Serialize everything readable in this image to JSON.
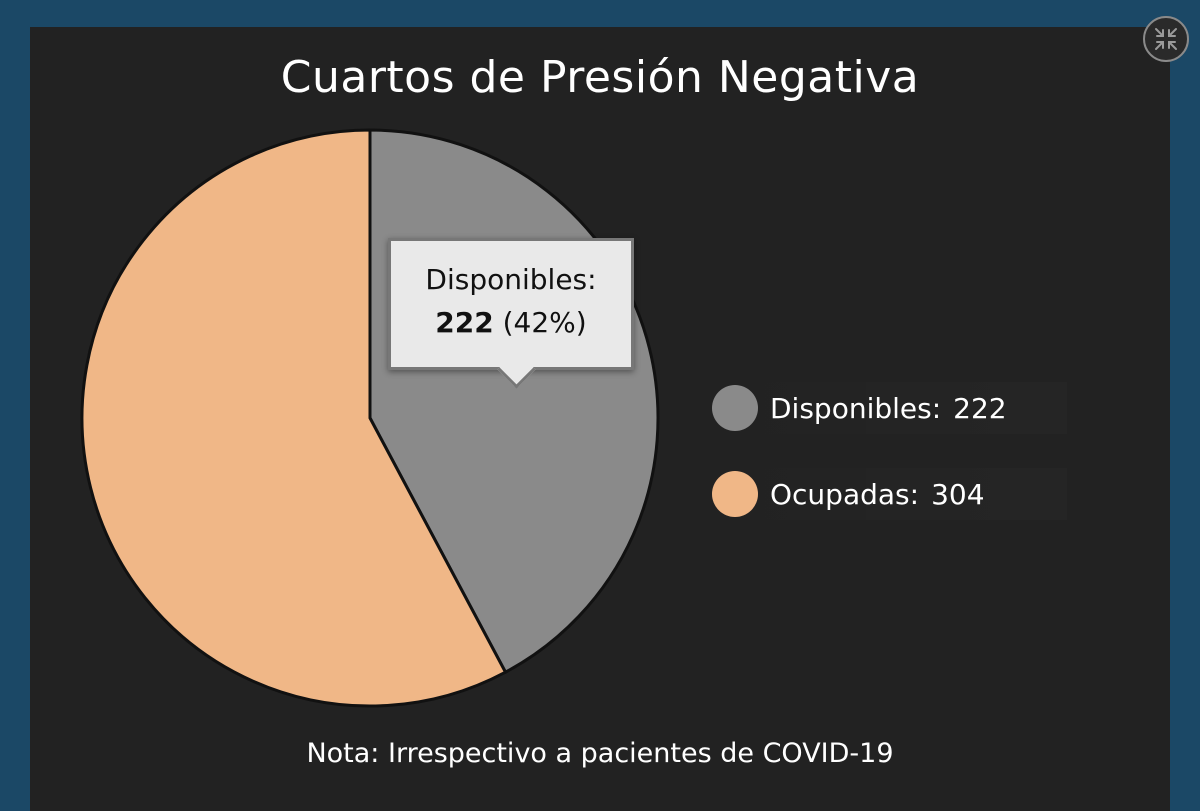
{
  "chart_data": {
    "type": "pie",
    "title": "Cuartos de Presión Negativa",
    "slices": [
      {
        "name": "Disponibles",
        "value": 222,
        "color": "#8a8a8a"
      },
      {
        "name": "Ocupadas",
        "value": 304,
        "color": "#f0b787"
      }
    ],
    "legend": {
      "placement": "right",
      "items": [
        {
          "label": "Disponibles:",
          "value": "222",
          "color": "#8a8a8a"
        },
        {
          "label": "Ocupadas:",
          "value": "304",
          "color": "#f0b787"
        }
      ]
    },
    "tooltip": {
      "name": "Disponibles:",
      "value": "222",
      "percent": "(42%)"
    },
    "note": "Nota: Irrespectivo a pacientes de COVID-19"
  },
  "controls": {
    "collapse_icon": "collapse-arrows-icon"
  }
}
